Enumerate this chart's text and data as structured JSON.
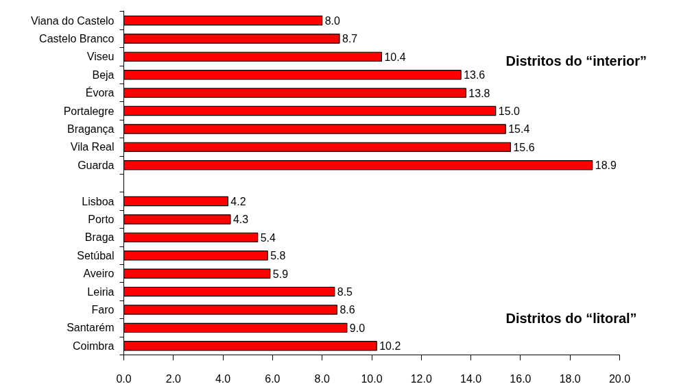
{
  "chart_data": {
    "type": "bar",
    "orientation": "horizontal",
    "categories": [
      "Viana do Castelo",
      "Castelo Branco",
      "Viseu",
      "Beja",
      "Évora",
      "Portalegre",
      "Bragança",
      "Vila Real",
      "Guarda",
      null,
      "Lisboa",
      "Porto",
      "Braga",
      "Setúbal",
      "Aveiro",
      "Leiria",
      "Faro",
      "Santarém",
      "Coimbra"
    ],
    "values": [
      8.0,
      8.7,
      10.4,
      13.6,
      13.8,
      15.0,
      15.4,
      15.6,
      18.9,
      null,
      4.2,
      4.3,
      5.4,
      5.8,
      5.9,
      8.5,
      8.6,
      9.0,
      10.2
    ],
    "value_labels": [
      "8.0",
      "8.7",
      "10.4",
      "13.6",
      "13.8",
      "15.0",
      "15.4",
      "15.6",
      "18.9",
      null,
      "4.2",
      "4.3",
      "5.4",
      "5.8",
      "5.9",
      "8.5",
      "8.6",
      "9.0",
      "10.2"
    ],
    "color": "#ff0000",
    "xlim": [
      0,
      20
    ],
    "xticks": [
      {
        "value": 0,
        "label": "0.0"
      },
      {
        "value": 2,
        "label": "2.0"
      },
      {
        "value": 4,
        "label": "4.0"
      },
      {
        "value": 6,
        "label": "6.0"
      },
      {
        "value": 8,
        "label": "8.0"
      },
      {
        "value": 10,
        "label": "10.0"
      },
      {
        "value": 12,
        "label": "12.0"
      },
      {
        "value": 14,
        "label": "14.0"
      },
      {
        "value": 16,
        "label": "16.0"
      },
      {
        "value": 18,
        "label": "18.0"
      },
      {
        "value": 20,
        "label": "20.0"
      }
    ],
    "annotations": [
      "Distritos do “interior”",
      "Distritos do “litoral”"
    ],
    "grid": false
  }
}
